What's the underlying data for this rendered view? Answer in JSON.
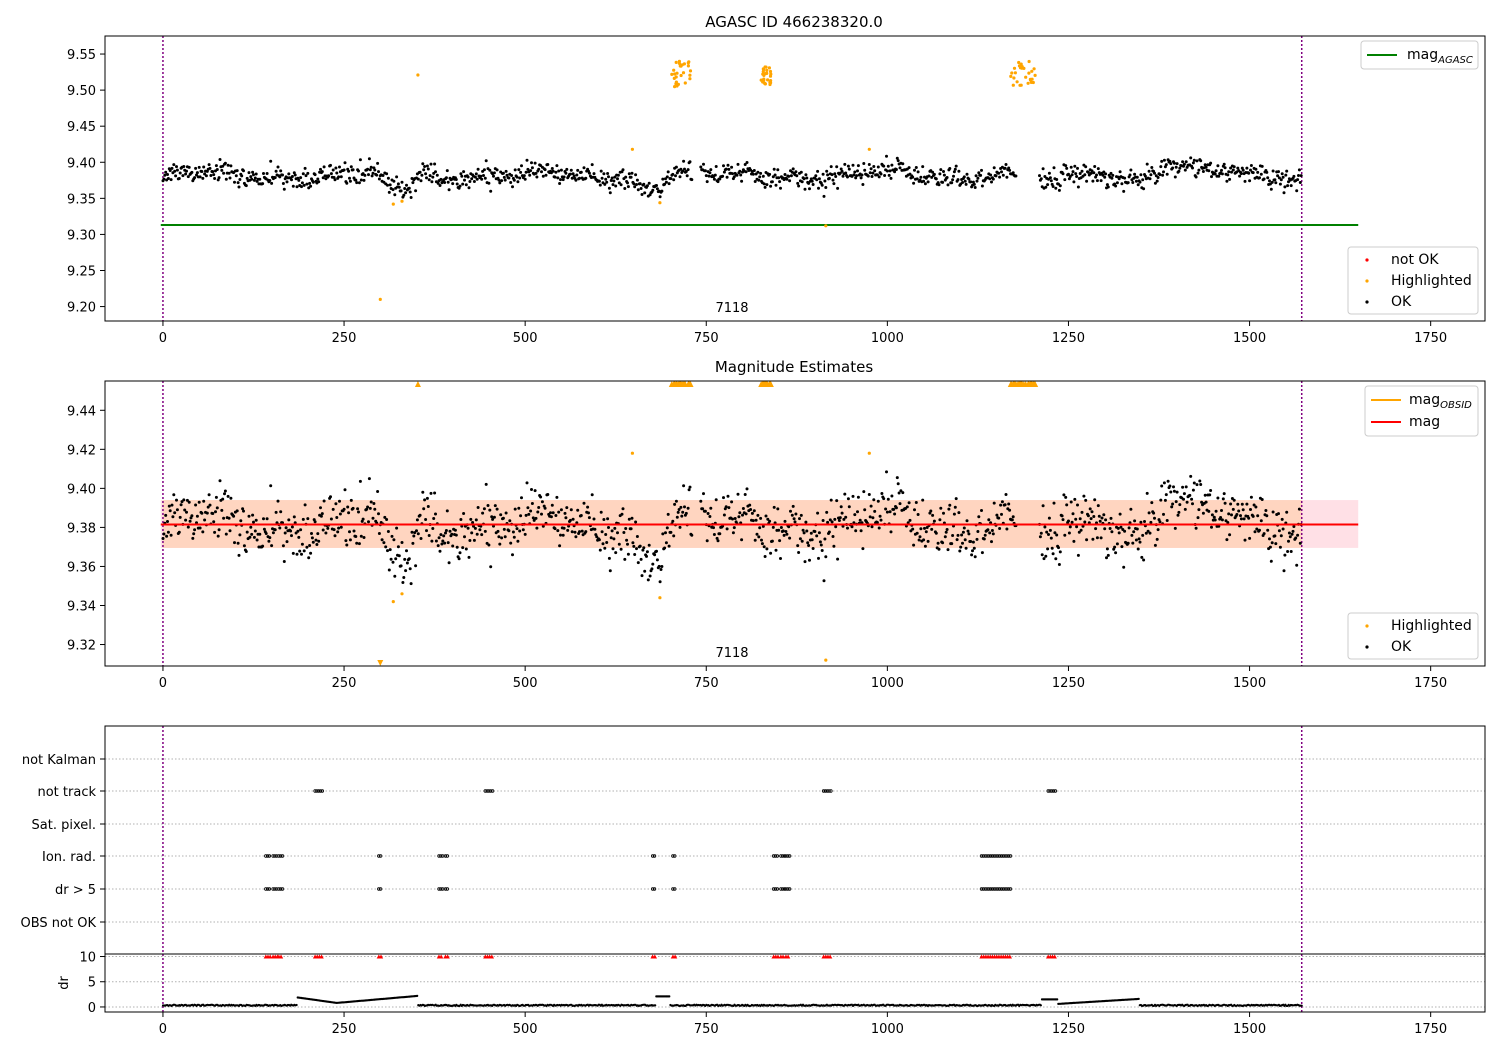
{
  "colors": {
    "ok": "#000000",
    "highlighted": "#ffa500",
    "not_ok": "#ff0000",
    "agasc_line": "#008000",
    "mag_line": "#ff0000",
    "mag_obsid_line": "#ffa500",
    "obs_marker": "#800080",
    "band_obsid": "#ffd5c0",
    "band_total": "#ffe0e6",
    "grid": "#b0b0b0"
  },
  "chart_data": [
    {
      "type": "scatter",
      "title": "AGASC ID 466238320.0",
      "xlim": [
        -80,
        1825
      ],
      "ylim": [
        9.18,
        9.575
      ],
      "xticks": [
        0,
        250,
        500,
        750,
        1000,
        1250,
        1500,
        1750
      ],
      "yticks": [
        9.2,
        9.25,
        9.3,
        9.35,
        9.4,
        9.45,
        9.5,
        9.55
      ],
      "obs_boundaries": [
        0,
        1572
      ],
      "obs_label": {
        "text": "7118",
        "x": 786
      },
      "ref_line": {
        "name": "mag_AGASC",
        "y": 9.313,
        "x_range": [
          -3,
          1650
        ]
      },
      "series": [
        {
          "name": "not OK",
          "description": "none visible in panel"
        },
        {
          "name": "Highlighted",
          "clusters": [
            [
              700,
              730,
              9.495,
              9.54
            ],
            [
              825,
              840,
              9.5,
              9.535
            ],
            [
              1170,
              1205,
              9.5,
              9.54
            ]
          ],
          "outliers": [
            [
              300,
              9.21
            ],
            [
              318,
              9.342
            ],
            [
              330,
              9.346
            ],
            [
              352,
              9.521
            ],
            [
              648,
              9.418
            ],
            [
              686,
              9.344
            ],
            [
              915,
              9.312
            ],
            [
              975,
              9.418
            ]
          ]
        },
        {
          "name": "OK",
          "mean": 9.382,
          "x_range": [
            0,
            1572
          ]
        }
      ],
      "legend_top": [
        {
          "label": "mag",
          "sub": "AGASC"
        }
      ],
      "legend_bottom": [
        "not OK",
        "Highlighted",
        "OK"
      ]
    },
    {
      "type": "scatter",
      "title": "Magnitude Estimates",
      "xlim": [
        -80,
        1825
      ],
      "ylim": [
        9.309,
        9.455
      ],
      "xticks": [
        0,
        250,
        500,
        750,
        1000,
        1250,
        1500,
        1750
      ],
      "yticks": [
        9.32,
        9.34,
        9.36,
        9.38,
        9.4,
        9.42,
        9.44
      ],
      "obs_boundaries": [
        0,
        1572
      ],
      "obs_label": {
        "text": "7118",
        "x": 786
      },
      "mag": 9.3815,
      "band_total": [
        9.3695,
        9.394
      ],
      "band_obsid": [
        9.3695,
        9.394
      ],
      "band_obsid_x": [
        0,
        1572
      ],
      "band_total_x": [
        -3,
        1650
      ],
      "legend_top": [
        {
          "label": "mag",
          "sub": "OBSID"
        },
        {
          "label": "mag"
        }
      ],
      "legend_bottom": [
        "Highlighted",
        "OK"
      ]
    },
    {
      "type": "scatter",
      "xlim": [
        -80,
        1825
      ],
      "xticks": [
        0,
        250,
        500,
        750,
        1000,
        1250,
        1500,
        1750
      ],
      "flag_labels": [
        "not Kalman",
        "not track",
        "Sat. pixel.",
        "Ion. rad.",
        "dr > 5",
        "OBS not OK"
      ],
      "flags": {
        "not Kalman": [],
        "not track": [
          [
            210,
            220
          ],
          [
            445,
            455
          ],
          [
            912,
            922
          ],
          [
            1222,
            1232
          ]
        ],
        "Sat. pixel.": [],
        "Ion. rad.": [
          [
            142,
            148
          ],
          [
            152,
            158
          ],
          [
            160,
            165
          ],
          [
            298,
            302
          ],
          [
            381,
            386
          ],
          [
            390,
            394
          ],
          [
            676,
            680
          ],
          [
            704,
            708
          ],
          [
            843,
            849
          ],
          [
            853,
            858
          ],
          [
            860,
            865
          ],
          [
            1130,
            1170
          ]
        ],
        "dr > 5": [
          [
            142,
            148
          ],
          [
            152,
            158
          ],
          [
            160,
            165
          ],
          [
            298,
            302
          ],
          [
            381,
            386
          ],
          [
            390,
            394
          ],
          [
            676,
            680
          ],
          [
            704,
            708
          ],
          [
            843,
            849
          ],
          [
            853,
            858
          ],
          [
            860,
            865
          ],
          [
            1130,
            1170
          ]
        ],
        "OBS not OK": []
      },
      "dr_yticks": [
        0,
        5,
        10
      ],
      "dr_ylabel": "dr",
      "dr_ylim": [
        -1,
        10.5
      ]
    }
  ]
}
